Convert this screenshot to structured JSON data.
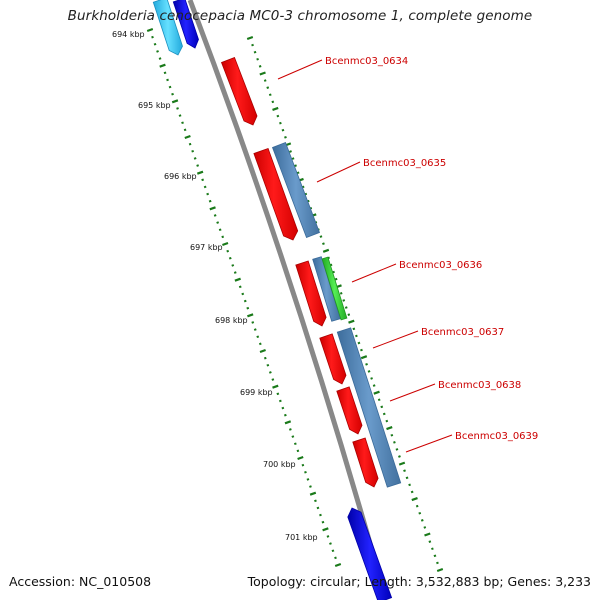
{
  "title": "Burkholderia cenocepacia MC0-3 chromosome 1, complete genome",
  "footer": {
    "accession": "Accession: NC_010508",
    "summary": "Topology: circular; Length: 3,532,883 bp; Genes: 3,233"
  },
  "colors": {
    "backbone": "#888888",
    "ticks": "#1a7a1a",
    "forward_gene": "#ff0000",
    "reverse_gene": "#4f86b8",
    "reverse_gene_edge": "#3a6a99",
    "blast_hit": "#33cc33",
    "blue_gene": "#0000ee",
    "cyan_gene": "#33ccff",
    "label": "#cc0000"
  },
  "kbp_labels": [
    {
      "text": "694 kbp",
      "kbp": 694
    },
    {
      "text": "695 kbp",
      "kbp": 695
    },
    {
      "text": "696 kbp",
      "kbp": 696
    },
    {
      "text": "697 kbp",
      "kbp": 697
    },
    {
      "text": "698 kbp",
      "kbp": 698
    },
    {
      "text": "699 kbp",
      "kbp": 699
    },
    {
      "text": "700 kbp",
      "kbp": 700
    },
    {
      "text": "701 kbp",
      "kbp": 701
    }
  ],
  "gene_labels": [
    {
      "text": "Bcenmc03_0634"
    },
    {
      "text": "Bcenmc03_0635"
    },
    {
      "text": "Bcenmc03_0636"
    },
    {
      "text": "Bcenmc03_0637"
    },
    {
      "text": "Bcenmc03_0638"
    },
    {
      "text": "Bcenmc03_0639"
    }
  ]
}
